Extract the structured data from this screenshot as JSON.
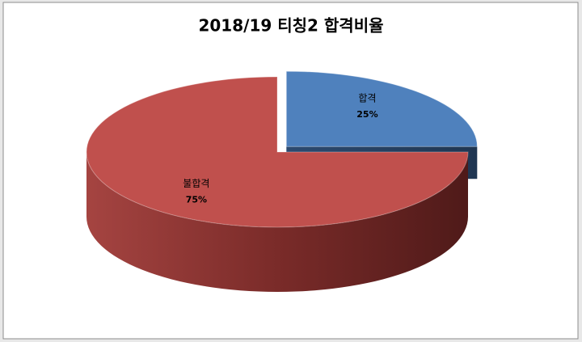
{
  "chart_data": {
    "type": "pie3d",
    "title": "2018/19  티칭2 합격비율",
    "categories": [
      "합격",
      "불합격"
    ],
    "values": [
      25,
      75
    ],
    "value_labels": [
      "25%",
      "75%"
    ],
    "colors": [
      "#4f81bd",
      "#c0504d"
    ],
    "exploded": [
      true,
      false
    ]
  }
}
